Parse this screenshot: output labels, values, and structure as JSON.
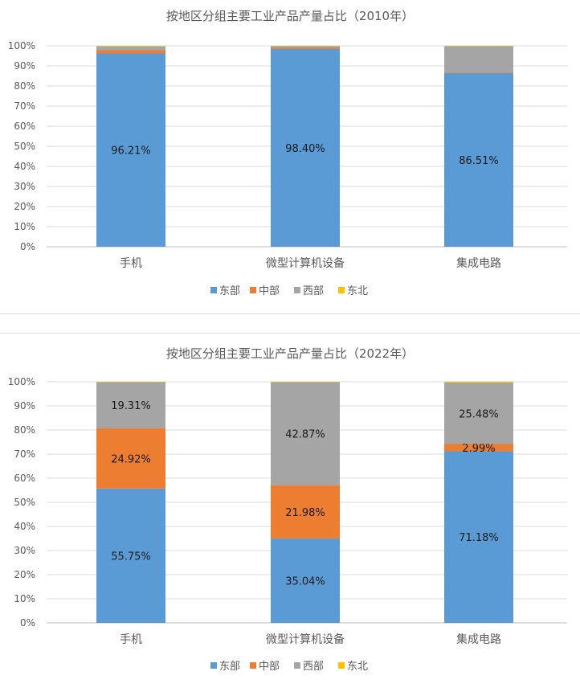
{
  "chart_data": [
    {
      "type": "bar",
      "stacked": true,
      "title": "按地区分组主要工业产品产量占比（2010年）",
      "categories": [
        "手机",
        "微型计算机设备",
        "集成电路"
      ],
      "ylim": [
        0,
        100
      ],
      "y_ticks": [
        "0%",
        "10%",
        "20%",
        "30%",
        "40%",
        "50%",
        "60%",
        "70%",
        "80%",
        "90%",
        "100%"
      ],
      "grid": true,
      "legend_position": "bottom",
      "series": [
        {
          "name": "东部",
          "color": "#5B9BD5",
          "values": [
            96.21,
            98.4,
            86.51
          ],
          "labels": [
            "96.21%",
            "98.40%",
            "86.51%"
          ]
        },
        {
          "name": "中部",
          "color": "#ED7D31",
          "values": [
            1.6,
            0.6,
            0.3
          ],
          "labels": [
            "",
            "",
            ""
          ]
        },
        {
          "name": "西部",
          "color": "#A5A5A5",
          "values": [
            1.9,
            0.8,
            13.0
          ],
          "labels": [
            "",
            "",
            ""
          ]
        },
        {
          "name": "东北",
          "color": "#FFC000",
          "values": [
            0.29,
            0.2,
            0.19
          ],
          "labels": [
            "",
            "",
            ""
          ]
        }
      ]
    },
    {
      "type": "bar",
      "stacked": true,
      "title": "按地区分组主要工业产品产量占比（2022年）",
      "categories": [
        "手机",
        "微型计算机设备",
        "集成电路"
      ],
      "ylim": [
        0,
        100
      ],
      "y_ticks": [
        "0%",
        "10%",
        "20%",
        "30%",
        "40%",
        "50%",
        "60%",
        "70%",
        "80%",
        "90%",
        "100%"
      ],
      "grid": true,
      "legend_position": "bottom",
      "series": [
        {
          "name": "东部",
          "color": "#5B9BD5",
          "values": [
            55.75,
            35.04,
            71.18
          ],
          "labels": [
            "55.75%",
            "35.04%",
            "71.18%"
          ]
        },
        {
          "name": "中部",
          "color": "#ED7D31",
          "values": [
            24.92,
            21.98,
            2.99
          ],
          "labels": [
            "24.92%",
            "21.98%",
            "2.99%"
          ]
        },
        {
          "name": "西部",
          "color": "#A5A5A5",
          "values": [
            19.31,
            42.87,
            25.48
          ],
          "labels": [
            "19.31%",
            "42.87%",
            "25.48%"
          ]
        },
        {
          "name": "东北",
          "color": "#FFC000",
          "values": [
            0.02,
            0.11,
            0.35
          ],
          "labels": [
            "",
            "",
            ""
          ]
        }
      ]
    }
  ]
}
